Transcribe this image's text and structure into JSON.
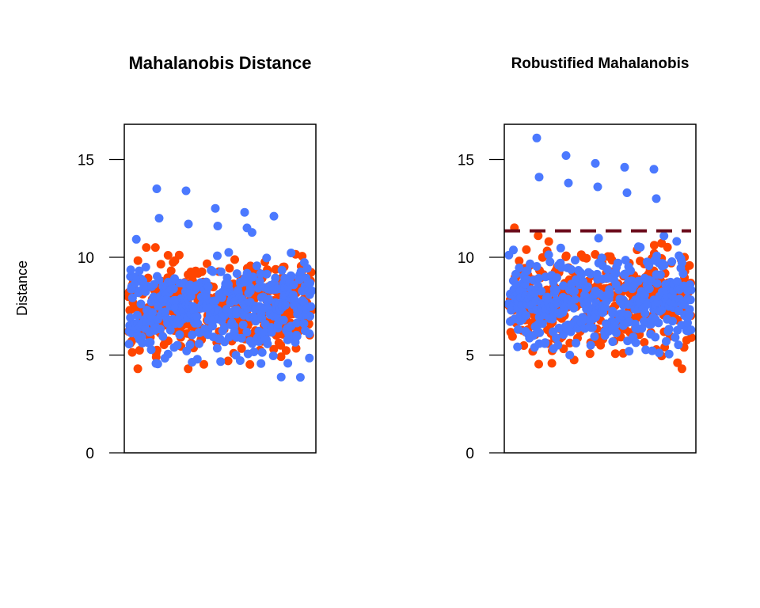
{
  "chart_data": [
    {
      "type": "scatter",
      "title": "Mahalanobis Distance",
      "xlabel": "",
      "ylabel": "Distance",
      "ylim": [
        0,
        16.8
      ],
      "yticks": [
        0,
        5,
        10,
        15
      ],
      "x_axis_shown": false,
      "n_points_per_series_approx": 400,
      "series": [
        {
          "color": "#FF4500",
          "y_range": [
            4.3,
            10.9
          ],
          "y_center": 7.4
        },
        {
          "color": "#4B79FF",
          "y_range": [
            3.8,
            13.5
          ],
          "y_center": 7.4,
          "notable_high_values": [
            13.5,
            13.4,
            12.5,
            12.3,
            12.1,
            12.0,
            11.7,
            11.6,
            11.5
          ]
        }
      ],
      "threshold": null
    },
    {
      "type": "scatter",
      "title": "Robustified Mahalanobis",
      "xlabel": "",
      "ylabel": "",
      "ylim": [
        0,
        16.8
      ],
      "yticks": [
        0,
        5,
        10,
        15
      ],
      "x_axis_shown": false,
      "n_points_per_series_approx": 400,
      "series": [
        {
          "color": "#FF4500",
          "y_range": [
            4.3,
            13.2
          ],
          "y_center": 7.8
        },
        {
          "color": "#4B79FF",
          "y_range": [
            3.9,
            16.1
          ],
          "y_center": 7.8,
          "notable_high_values": [
            16.1,
            15.2,
            14.8,
            14.6,
            14.5,
            14.1,
            13.8,
            13.6,
            13.3,
            13.0
          ]
        }
      ],
      "threshold": {
        "y": 11.35,
        "color": "#6B0A1A",
        "style": "dashed"
      }
    }
  ]
}
